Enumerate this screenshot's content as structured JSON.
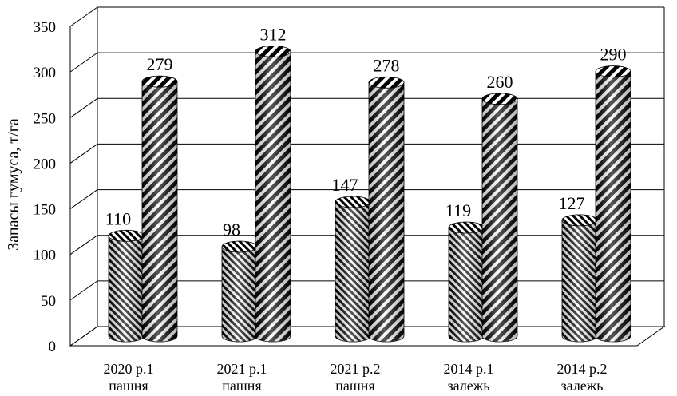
{
  "chart_data": {
    "type": "bar",
    "title": "",
    "xlabel": "",
    "ylabel": "Запасы гумуса, т/га",
    "ylim": [
      0,
      350
    ],
    "yticks": [
      0,
      50,
      100,
      150,
      200,
      250,
      300,
      350
    ],
    "grid": true,
    "legend": "none",
    "categories": [
      [
        "2020 р.1",
        "пашня"
      ],
      [
        "2021 р.1",
        "пашня"
      ],
      [
        "2021 р.2",
        "пашня"
      ],
      [
        "2014 р.1",
        "залежь"
      ],
      [
        "2014 р.2",
        "залежь"
      ]
    ],
    "series": [
      {
        "values": [
          110,
          98,
          147,
          119,
          127
        ],
        "pattern": "fine-diagonal-stripes"
      },
      {
        "values": [
          279,
          312,
          278,
          260,
          290
        ],
        "pattern": "wide-diagonal-stripes"
      }
    ],
    "colors": {
      "stripe_dark": "#000000",
      "stripe_light": "#ffffff",
      "grid": "#000000"
    }
  }
}
